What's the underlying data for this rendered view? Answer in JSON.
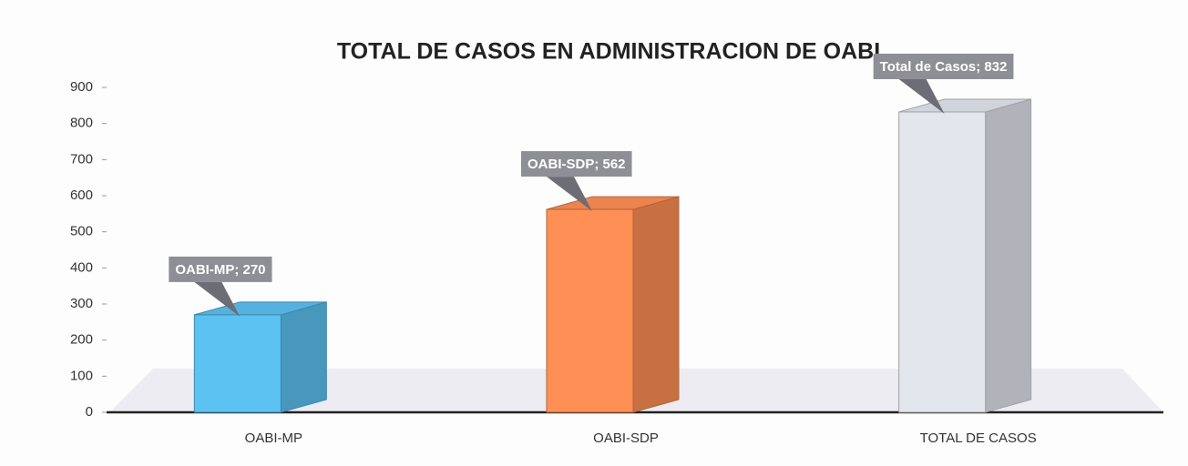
{
  "chart_data": {
    "type": "bar3d",
    "title": "TOTAL DE CASOS EN ADMINISTRACION DE OABI",
    "categories": [
      "OABI-MP",
      "OABI-SDP",
      "TOTAL DE CASOS"
    ],
    "values": [
      270,
      562,
      832
    ],
    "value_labels": [
      "OABI-MP; 270",
      "OABI-SDP; 562",
      "Total de Casos; 832"
    ],
    "colors": [
      "#5cc2f2",
      "#ff8f55",
      "#e4e6ee"
    ],
    "ylim": [
      0,
      900
    ],
    "yticks": [
      0,
      100,
      200,
      300,
      400,
      500,
      600,
      700,
      800,
      900
    ]
  }
}
